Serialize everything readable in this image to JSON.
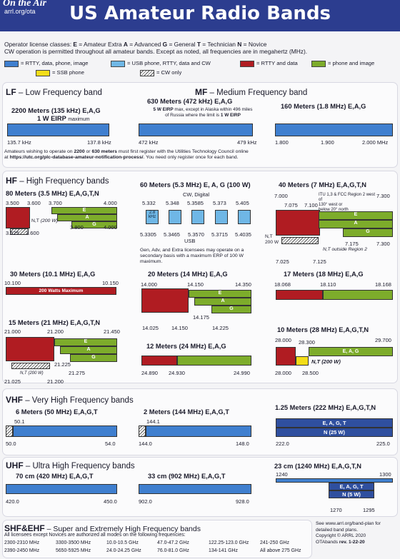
{
  "header": {
    "logo": "On the Air",
    "logo_url": "arrl.org/ota",
    "title": "US Amateur Radio Bands"
  },
  "intro": {
    "line1_pre": "Operator license classes: ",
    "e": "E",
    "e_lbl": " = Amateur Extra ",
    "a": "A",
    "a_lbl": " = Advanced ",
    "g": "G",
    "g_lbl": " = General ",
    "t": "T",
    "t_lbl": " = Technician ",
    "n": "N",
    "n_lbl": " = Novice",
    "line2": "CW operation is permitted throughout all amateur bands. Except as noted, all frequencies are in megahertz (MHz)."
  },
  "legend": [
    {
      "label": "= RTTY, data, phone, image",
      "color": "#3f7fcf"
    },
    {
      "label": "= USB phone, RTTY, data and CW",
      "color": "#6fb7e6"
    },
    {
      "label": "= RTTY and data",
      "color": "#b01c22"
    },
    {
      "label": "= phone and image",
      "color": "#7dac2b"
    },
    {
      "label": "= SSB phone",
      "color": "#f3dd18"
    },
    {
      "label": "= CW only",
      "color": "hatch"
    }
  ],
  "lf": {
    "abbr": "LF",
    "name": " – Low Frequency band",
    "band": "2200 Meters (135 kHz)",
    "cls": "E,A,G",
    "sub": "1 W EIRP",
    "sub2": "maximum",
    "lo": "135.7 kHz",
    "hi": "137.8 kHz"
  },
  "mf": {
    "abbr": "MF",
    "name": " – Medium Frequency band",
    "b630": {
      "band": "630 Meters (472 kHz)",
      "cls": "E,A,G",
      "n1": "5 W EIRP",
      "n2": "max, except in Alaska within 496 miles",
      "n3": "of Russia where the limit is",
      "n4": "1 W EIRP",
      "lo": "472 kHz",
      "hi": "479 kHz"
    },
    "b160": {
      "band": "160 Meters (1.8 MHz)",
      "cls": "E,A,G",
      "f1": "1.800",
      "f2": "1.900",
      "f3": "2.000 MHz"
    }
  },
  "utc": {
    "pre": "Amateurs wishing to operate on ",
    "b1": "2200",
    "m1": " or ",
    "b2": "630 meters",
    "m2": " must first register with the Utilities Technology Council online",
    "l2pre": "at ",
    "url": "https://utc.org/plc-database-amateur-notification-process/",
    "l2post": ". You need only register once for each band."
  },
  "hf": {
    "abbr": "HF",
    "name": " – High Frequency bands",
    "m80": {
      "band": "80 Meters (3.5 MHz)",
      "cls": "E,A,G,T,N",
      "f1": "3.500",
      "f2": "3.600",
      "f3": "3.700",
      "f4": "4.000",
      "f5": "3.525",
      "f6": "3.600",
      "f7": "3.800",
      "f8": "4.000",
      "nt": "N,T",
      "ntw": "(200 W)",
      "e": "E",
      "a": "A",
      "g": "G"
    },
    "m60": {
      "band": "60 Meters (5.3 MHz) E, A, G (100 W)",
      "cw": "CW, Digital",
      "t1": "5.332",
      "t2": "5.348",
      "t3": "5.3585",
      "t4": "5.373",
      "t5": "5.405",
      "inner": "2.8",
      "inner2": "kHz",
      "b1": "5.3305",
      "b2": "5.3465",
      "b3": "5.3570",
      "b4": "5.3715",
      "b5": "5.4035",
      "usb": "USB",
      "n1": "Gen, Adv, and Extra licensees may operate on a",
      "n2": "secondary basis with a maximum ERP of 100 W",
      "n3": "maximum."
    },
    "m40": {
      "band": "40 Meters (7 MHz)",
      "cls": "E,A,G,T,N",
      "f1": "7.000",
      "f2": "7.075",
      "f3": "7.100",
      "f4": "7.300",
      "itu": "ITU 1,3 & FCC Region 2 west of",
      "itu2": "130° west or",
      "itu3": "below 20° north",
      "nt": "N,T",
      "ntw": "200 W",
      "f5": "7.175",
      "f6": "7.300",
      "f7": "7.025",
      "f8": "7.125",
      "out": "N,T outside Region 2",
      "e": "E",
      "a": "A",
      "g": "G"
    },
    "m30": {
      "band": "30 Meters (10.1 MHz)",
      "cls": "E,A,G",
      "f1": "10.100",
      "f2": "10.150",
      "max": "200 Watts Maximum"
    },
    "m20": {
      "band": "20 Meters (14 MHz)",
      "cls": "E,A,G",
      "f1": "14.000",
      "f2": "14.150",
      "f3": "14.350",
      "f4": "14.175",
      "f5": "14.025",
      "f6": "14.150",
      "f7": "14.225",
      "e": "E",
      "a": "A",
      "g": "G"
    },
    "m17": {
      "band": "17 Meters (18 MHz)",
      "cls": "E,A,G",
      "f1": "18.068",
      "f2": "18.110",
      "f3": "18.168"
    },
    "m15": {
      "band": "15 Meters (21 MHz)",
      "cls": "E,A,G,T,N",
      "f1": "21.000",
      "f2": "21.200",
      "f3": "21.450",
      "f4": "21.225",
      "f5": "21.275",
      "f6": "21.025",
      "f7": "21.200",
      "nt": "N,T (200 W)",
      "e": "E",
      "a": "A",
      "g": "G"
    },
    "m12": {
      "band": "12 Meters (24 MHz)",
      "cls": "E,A,G",
      "f1": "24.890",
      "f2": "24.930",
      "f3": "24.990"
    },
    "m10": {
      "band": "10 Meters (28 MHz)",
      "cls": "E,A,G,T,N",
      "f1": "28.000",
      "f2": "28.300",
      "f3": "29.700",
      "eag": "E, A, G",
      "nt": "N,T",
      "ntw": "(200 W)",
      "f4": "28.000",
      "f5": "28.500"
    }
  },
  "vhf": {
    "abbr": "VHF",
    "name": " – Very High Frequency bands",
    "m6": {
      "band": "6 Meters (50 MHz)",
      "cls": "E,A,G,T",
      "f1": "50.1",
      "lo": "50.0",
      "hi": "54.0"
    },
    "m2": {
      "band": "2 Meters (144 MHz)",
      "cls": "E,A,G,T",
      "f1": "144.1",
      "lo": "144.0",
      "hi": "148.0"
    },
    "m125": {
      "band": "1.25 Meters (222 MHz)",
      "cls": "E,A,G,T,N",
      "top": "E, A, G, T",
      "bot": "N (25 W)",
      "lo": "222.0",
      "hi": "225.0"
    }
  },
  "uhf": {
    "abbr": "UHF",
    "name": " – Ultra High Frequency bands",
    "m70": {
      "band": "70 cm (420 MHz)",
      "cls": "E,A,G,T",
      "lo": "420.0",
      "hi": "450.0"
    },
    "m33": {
      "band": "33 cm (902 MHz)",
      "cls": "E,A,G,T",
      "lo": "902.0",
      "hi": "928.0"
    },
    "m23": {
      "band": "23 cm (1240 MHz)",
      "cls": "E,A,G,T,N",
      "f1": "1240",
      "f2": "1300",
      "top": "E, A, G, T",
      "bot": "N (5 W)",
      "f3": "1270",
      "f4": "1295"
    }
  },
  "shf": {
    "abbr": "SHF&EHF",
    "name": " – Super and Extremely High Frequency bands",
    "note": "All licensees except Novices are authorized all modes on the following frequencies:",
    "freqs": [
      "2300-2310 MHz",
      "3300-3500 MHz",
      "10.0-10.5 GHz",
      "47.0-47.2 GHz",
      "122.25-123.0 GHz",
      "241-250 GHz",
      "2390-2450 MHz",
      "5650-5925 MHz",
      "24.0-24.25 GHz",
      "76.0-81.0 GHz",
      "134-141 GHz",
      "All above 275 GHz"
    ]
  },
  "footer": {
    "l1": "See www.arrl.org/band-plan for",
    "l2": "detailed band plans.",
    "l3": "Copyright © ARRL 2020",
    "l4": "OTAbands",
    "l5": "rev. 1-22-20"
  }
}
